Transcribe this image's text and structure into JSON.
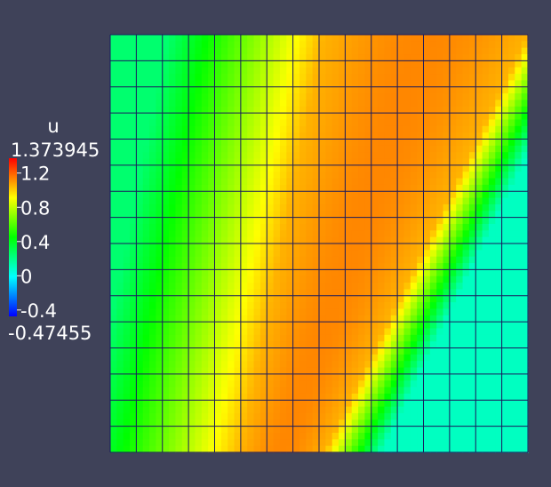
{
  "chart_data": {
    "type": "heatmap",
    "title": "",
    "colorbar": {
      "title": "u",
      "max_label": "1.373945",
      "min_label": "-0.47455",
      "range": [
        -0.47455,
        1.373945
      ],
      "ticks": [
        {
          "value": 1.2,
          "label": "1.2"
        },
        {
          "value": 0.8,
          "label": "0.8"
        },
        {
          "value": 0.4,
          "label": "0.4"
        },
        {
          "value": 0,
          "label": "0"
        },
        {
          "value": -0.4,
          "label": "-0.4"
        }
      ],
      "colormap": [
        "#0000ff",
        "#00ffff",
        "#00ff00",
        "#ffff00",
        "#ff0000"
      ],
      "placement": "left"
    },
    "grid": {
      "rows": 16,
      "cols": 16,
      "cell_edges": true,
      "edge_color": "#1a1a5e"
    },
    "field_description_values": {
      "front_1_start_col": 5.0,
      "front_1_end_col": 8.2,
      "front_2_start_col": 8.2,
      "front_2_end_col": 16.0,
      "upstream_value": 0.25,
      "plateau_value": 1.05,
      "downstream_value": 0.1,
      "background": "#3f4259"
    }
  }
}
